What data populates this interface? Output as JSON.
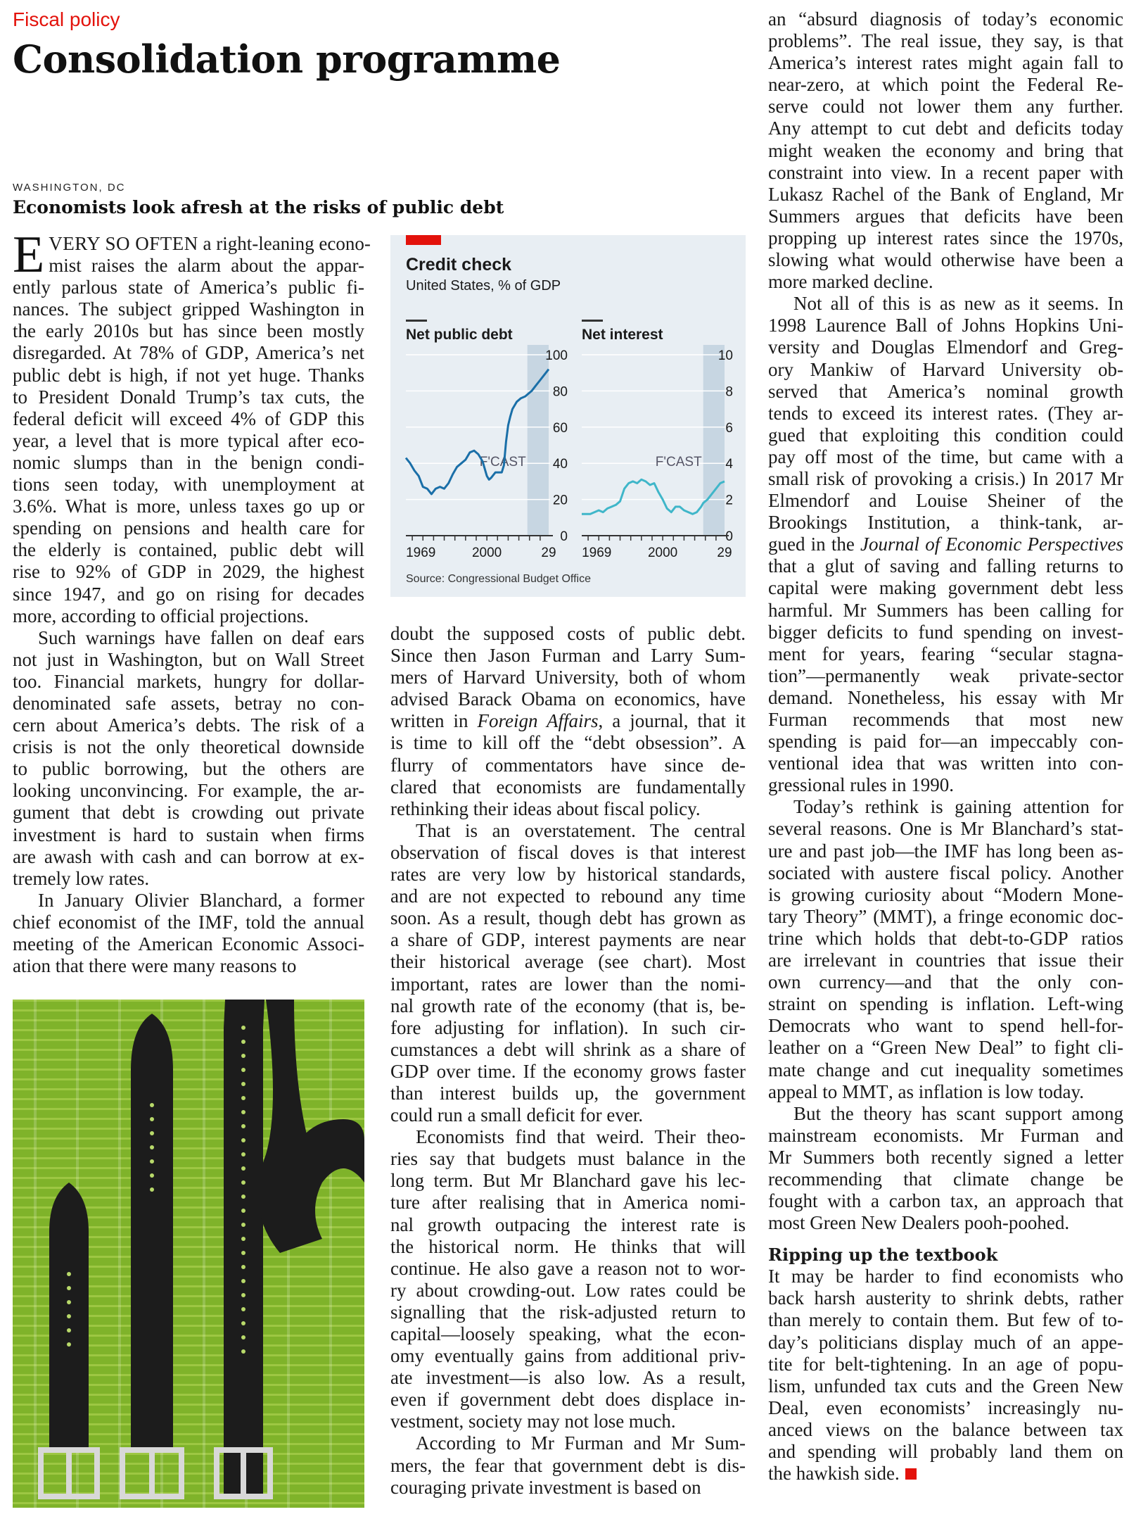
{
  "header": {
    "section": "Fiscal policy",
    "headline": "Consolidation programme",
    "dateline": "WASHINGTON, DC",
    "rubric": "Economists look afresh at the risks of public debt"
  },
  "chart": {
    "title": "Credit check",
    "subtitle": "United States, % of GDP",
    "source": "Source: Congressional Budget Office",
    "forecast_label": "F'CAST",
    "colors": {
      "line": "#1a6fa8",
      "line_light": "#3fb6c9",
      "forecast": "#c7d6e2",
      "tag": "#e3120b",
      "background": "#e8eef3"
    }
  },
  "chart_data": [
    {
      "type": "line",
      "name": "Net public debt",
      "x_ticks": [
        "1969",
        "2000",
        "29"
      ],
      "y_ticks": [
        "0",
        "20",
        "40",
        "60",
        "80",
        "100"
      ],
      "ylim": [
        0,
        100
      ],
      "xlim": [
        1962,
        2029
      ],
      "forecast_range": [
        2019,
        2029
      ],
      "x": [
        1962,
        1964,
        1966,
        1968,
        1970,
        1972,
        1974,
        1976,
        1978,
        1980,
        1982,
        1984,
        1986,
        1988,
        1990,
        1992,
        1994,
        1996,
        1998,
        2000,
        2001,
        2002,
        2004,
        2006,
        2007,
        2008,
        2009,
        2010,
        2011,
        2012,
        2014,
        2016,
        2018,
        2019,
        2021,
        2023,
        2025,
        2027,
        2029
      ],
      "values": [
        43,
        40,
        36,
        33,
        27,
        26,
        23,
        26,
        27,
        26,
        29,
        34,
        38,
        40,
        42,
        46,
        47,
        45,
        41,
        33,
        31,
        32,
        35,
        35,
        35,
        39,
        52,
        61,
        66,
        70,
        74,
        76,
        77,
        78,
        80,
        83,
        86,
        89,
        92
      ]
    },
    {
      "type": "line",
      "name": "Net interest",
      "x_ticks": [
        "1969",
        "2000",
        "29"
      ],
      "y_ticks": [
        "0",
        "2",
        "4",
        "6",
        "8",
        "10"
      ],
      "ylim": [
        0,
        10
      ],
      "xlim": [
        1962,
        2029
      ],
      "forecast_range": [
        2019,
        2029
      ],
      "x": [
        1962,
        1964,
        1966,
        1968,
        1970,
        1972,
        1974,
        1976,
        1978,
        1980,
        1982,
        1984,
        1986,
        1988,
        1990,
        1992,
        1994,
        1996,
        1998,
        2000,
        2002,
        2004,
        2006,
        2008,
        2010,
        2012,
        2014,
        2016,
        2018,
        2019,
        2021,
        2023,
        2025,
        2027,
        2029
      ],
      "values": [
        1.2,
        1.2,
        1.2,
        1.3,
        1.4,
        1.3,
        1.5,
        1.6,
        1.7,
        1.9,
        2.6,
        2.9,
        3.0,
        2.9,
        3.1,
        3.0,
        2.8,
        2.9,
        2.4,
        2.0,
        1.5,
        1.3,
        1.6,
        1.6,
        1.4,
        1.3,
        1.2,
        1.3,
        1.6,
        1.8,
        2.0,
        2.3,
        2.6,
        2.9,
        3.0
      ]
    }
  ],
  "col1_lines": [
    "mist raises the alarm about the appar-",
    "ently parlous state of America’s public fi-",
    "nances. The subject gripped Washington in",
    "the early 2010s but has since been mostly",
    "disregarded. At 78% of GDP, America’s net",
    "public debt is high, if not yet huge. Thanks",
    "to President Donald Trump’s tax cuts, the",
    "federal deficit will exceed 4% of GDP this",
    "year, a level that is more typical after eco-",
    "nomic slumps than in the benign condi-",
    "tions seen today, with unemployment at",
    "3.6%. What is more, unless taxes go up or",
    "spending on pensions and health care for",
    "the elderly is contained, public debt will",
    "rise to 92% of GDP in 2029, the highest",
    "since 1947, and go on rising for decades",
    "more, according to official projections.",
    "Such warnings have fallen on deaf ears",
    "not just in Washington, but on Wall Street",
    "too. Financial markets, hungry for dollar-",
    "denominated safe assets, betray no con-",
    "cern about America’s debts. The risk of a",
    "crisis is not the only theoretical downside",
    "to public borrowing, but the others are",
    "looking unconvincing. For example, the ar-",
    "gument that debt is crowding out private",
    "investment is hard to sustain when firms",
    "are awash with cash and can borrow at ex-",
    "tremely low rates.",
    "In January Olivier Blanchard, a former",
    "chief economist of the IMF, told the annual",
    "meeting of the American Economic Associ-",
    "ation that there were many reasons to"
  ],
  "col1_first": {
    "dropcap": "E",
    "smallcaps": "VERY SO OFTEN",
    "rest": " a right-leaning econo-"
  },
  "col2_lines": [
    "doubt the supposed costs of public debt.",
    "Since then Jason Furman and Larry Sum-",
    "mers of Harvard University, both of whom",
    "advised Barack Obama on economics, have",
    "written in Foreign Affairs, a journal, that it",
    "is time to kill off the “debt obsession”. A",
    "flurry of commentators have since de-",
    "clared that economists are fundamentally",
    "rethinking their ideas about fiscal policy.",
    "That is an overstatement. The central",
    "observation of fiscal doves is that interest",
    "rates are very low by historical standards,",
    "and are not expected to rebound any time",
    "soon. As a result, though debt has grown as",
    "a share of GDP, interest payments are near",
    "their historical average (see chart). Most",
    "important, rates are lower than the nomi-",
    "nal growth rate of the economy (that is, be-",
    "fore adjusting for inflation). In such cir-",
    "cumstances a debt will shrink as a share of",
    "GDP over time. If the economy grows faster",
    "than interest builds up, the government",
    "could run a small deficit for ever.",
    "Economists find that weird. Their theo-",
    "ries say that budgets must balance in the",
    "long term. But Mr Blanchard gave his lec-",
    "ture after realising that in America nomi-",
    "nal growth outpacing the interest rate is",
    "the historical norm. He thinks that will",
    "continue. He also gave a reason not to wor-",
    "ry about crowding-out. Low rates could be",
    "signalling that the risk-adjusted return to",
    "capital—loosely speaking, what the econ-",
    "omy eventually gains from additional priv-",
    "ate investment—is also low. As a result,",
    "even if government debt does displace in-",
    "vestment, society may not lose much.",
    "According to Mr Furman and Mr Sum-",
    "mers, the fear that government debt is dis-",
    "couraging private investment is based on"
  ],
  "col3_lines": [
    "an “absurd diagnosis of today’s economic",
    "problems”. The real issue, they say, is that",
    "America’s interest rates might again fall to",
    "near-zero, at which point the Federal Re-",
    "serve could not lower them any further.",
    "Any attempt to cut debt and deficits today",
    "might weaken the economy and bring that",
    "constraint into view. In a recent paper with",
    "Lukasz Rachel of the Bank of England, Mr",
    "Summers argues that deficits have been",
    "propping up interest rates since the 1970s,",
    "slowing what would otherwise have been a",
    "more marked decline.",
    "Not all of this is as new as it seems. In",
    "1998 Laurence Ball of Johns Hopkins Uni-",
    "versity and Douglas Elmendorf and Greg-",
    "ory Mankiw of Harvard University ob-",
    "served that America’s nominal growth",
    "tends to exceed its interest rates. (They ar-",
    "gued that exploiting this condition could",
    "pay off most of the time, but came with a",
    "small risk of provoking a crisis.) In 2017 Mr",
    "Elmendorf and Louise Sheiner of the",
    "Brookings Institution, a think-tank, ar-",
    "gued in the Journal of Economic Perspectives",
    "that a glut of saving and falling returns to",
    "capital were making government debt less",
    "harmful. Mr Summers has been calling for",
    "bigger deficits to fund spending on invest-",
    "ment for years, fearing “secular stagna-",
    "tion”—permanently weak private-sector",
    "demand. Nonetheless, his essay with Mr",
    "Furman recommends that most new",
    "spending is paid for—an impeccably con-",
    "ventional idea that was written into con-",
    "gressional rules in 1990.",
    "Today’s rethink is gaining attention for",
    "several reasons. One is Mr Blanchard’s stat-",
    "ure and past job—the IMF has long been as-",
    "sociated with austere fiscal policy. Another",
    "is growing curiosity about “Modern Mone-",
    "tary Theory” (MMT), a fringe economic doc-",
    "trine which holds that debt-to-GDP ratios",
    "are irrelevant in countries that issue their",
    "own currency—and that the only con-",
    "straint on spending is inflation. Left-wing",
    "Democrats who want to spend hell-for-",
    "leather on a “Green New Deal” to fight cli-",
    "mate change and cut inequality sometimes",
    "appeal to MMT, as inflation is low today.",
    "But the theory has scant support among",
    "mainstream economists. Mr Furman and",
    "Mr Summers both recently signed a letter",
    "recommending that climate change be",
    "fought with a carbon tax, an approach that",
    "most Green New Dealers pooh-poohed."
  ],
  "col3_subhead": "Ripping up the textbook",
  "col3_after": [
    "It may be harder to find economists who",
    "back harsh austerity to shrink debts, rather",
    "than merely to contain them. But few of to-",
    "day’s politicians display much of an appe-",
    "tite for belt-tightening. In an age of popu-",
    "lism, unfunded tax cuts and the Green New",
    "Deal, even economists’ increasingly nu-",
    "anced views on the balance between tax",
    "and spending will probably land them on",
    "the hawkish side."
  ]
}
